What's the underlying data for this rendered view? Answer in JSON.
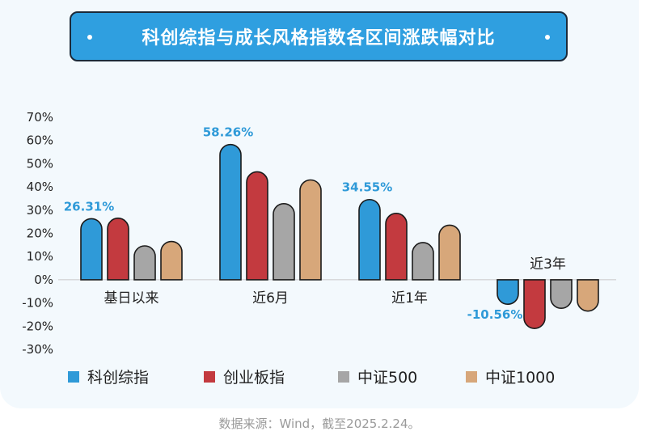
{
  "chart_data": {
    "type": "bar",
    "title": "科创综指与成长风格指数各区间涨跌幅对比",
    "categories": [
      "基日以来",
      "近6月",
      "近1年",
      "近3年"
    ],
    "series": [
      {
        "name": "科创综指",
        "color": "#2f9ad8",
        "values": [
          26.31,
          58.26,
          34.55,
          -10.56
        ],
        "data_labels": [
          "26.31%",
          "58.26%",
          "34.55%",
          "-10.56%"
        ]
      },
      {
        "name": "创业板指",
        "color": "#c33a3f",
        "values": [
          26.5,
          46.5,
          28.6,
          -21.0
        ]
      },
      {
        "name": "中证500",
        "color": "#a6a6a6",
        "values": [
          14.6,
          32.8,
          16.0,
          -12.3
        ]
      },
      {
        "name": "中证1000",
        "color": "#d7a77a",
        "values": [
          16.5,
          43.0,
          23.5,
          -13.5
        ]
      }
    ],
    "yticks": [
      "70%",
      "60%",
      "50%",
      "40%",
      "30%",
      "20%",
      "10%",
      "0%",
      "-10%",
      "-20%",
      "-30%"
    ],
    "ylim": [
      -30,
      70
    ],
    "legend_position": "bottom",
    "source": "数据来源：Wind，截至2025.2.24。"
  }
}
